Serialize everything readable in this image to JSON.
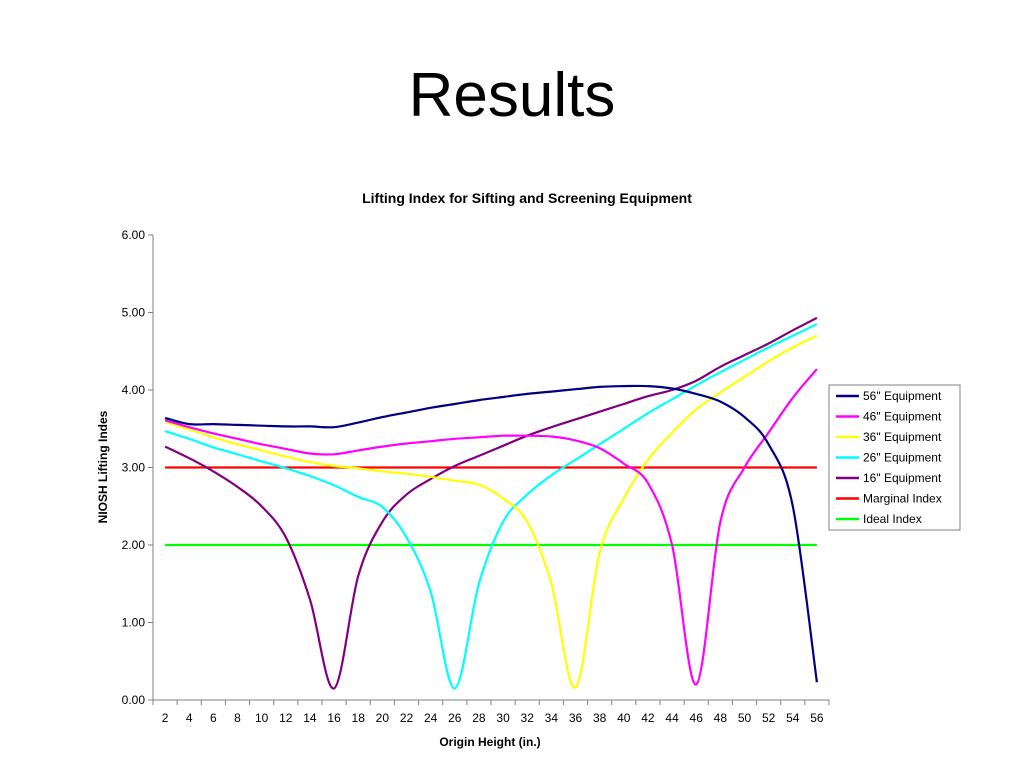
{
  "slide": {
    "title": "Results"
  },
  "chart_data": {
    "type": "line",
    "title": "Lifting Index for Sifting and Screening Equipment",
    "xlabel": "Origin Height (in.)",
    "ylabel": "NIOSH Lifting Indes",
    "ylim": [
      0,
      6
    ],
    "yticks": [
      "0.00",
      "1.00",
      "2.00",
      "3.00",
      "4.00",
      "5.00",
      "6.00"
    ],
    "x": [
      2,
      4,
      6,
      8,
      10,
      12,
      14,
      16,
      18,
      20,
      22,
      24,
      26,
      28,
      30,
      32,
      34,
      36,
      38,
      40,
      42,
      44,
      46,
      48,
      50,
      52,
      54,
      56
    ],
    "legend_position": "right",
    "series": [
      {
        "name": "56\" Equipment",
        "color": "#000080",
        "values": [
          3.64,
          3.56,
          3.56,
          3.55,
          3.54,
          3.53,
          3.53,
          3.52,
          3.58,
          3.65,
          3.71,
          3.77,
          3.82,
          3.87,
          3.91,
          3.95,
          3.98,
          4.01,
          4.04,
          4.05,
          4.05,
          4.02,
          3.95,
          3.85,
          3.65,
          3.3,
          2.5,
          0.23
        ]
      },
      {
        "name": "46\" Equipment",
        "color": "#FF00FF",
        "values": [
          3.61,
          3.52,
          3.44,
          3.37,
          3.3,
          3.24,
          3.18,
          3.17,
          3.22,
          3.27,
          3.31,
          3.34,
          3.37,
          3.39,
          3.41,
          3.41,
          3.4,
          3.35,
          3.25,
          3.05,
          2.8,
          2.0,
          0.2,
          2.3,
          3.0,
          3.45,
          3.9,
          4.27
        ]
      },
      {
        "name": "36\" Equipment",
        "color": "#FFFF00",
        "values": [
          3.59,
          3.49,
          3.39,
          3.3,
          3.22,
          3.14,
          3.07,
          3.02,
          2.99,
          2.95,
          2.92,
          2.88,
          2.83,
          2.78,
          2.6,
          2.3,
          1.5,
          0.16,
          1.9,
          2.6,
          3.1,
          3.45,
          3.75,
          3.97,
          4.17,
          4.37,
          4.55,
          4.7
        ]
      },
      {
        "name": "26\" Equipment",
        "color": "#00FFFF",
        "values": [
          3.47,
          3.37,
          3.26,
          3.17,
          3.08,
          2.99,
          2.89,
          2.77,
          2.62,
          2.49,
          2.1,
          1.4,
          0.15,
          1.5,
          2.3,
          2.65,
          2.9,
          3.1,
          3.3,
          3.5,
          3.7,
          3.88,
          4.06,
          4.23,
          4.39,
          4.55,
          4.7,
          4.85
        ]
      },
      {
        "name": "16\" Equipment",
        "color": "#800080",
        "values": [
          3.27,
          3.12,
          2.95,
          2.75,
          2.5,
          2.1,
          1.3,
          0.15,
          1.6,
          2.3,
          2.65,
          2.85,
          3.02,
          3.15,
          3.28,
          3.41,
          3.52,
          3.62,
          3.72,
          3.82,
          3.92,
          4.0,
          4.12,
          4.3,
          4.45,
          4.6,
          4.77,
          4.93
        ]
      },
      {
        "name": "Marginal Index",
        "color": "#FF0000",
        "values": [
          3,
          3,
          3,
          3,
          3,
          3,
          3,
          3,
          3,
          3,
          3,
          3,
          3,
          3,
          3,
          3,
          3,
          3,
          3,
          3,
          3,
          3,
          3,
          3,
          3,
          3,
          3,
          3
        ]
      },
      {
        "name": "Ideal Index",
        "color": "#00FF00",
        "values": [
          2,
          2,
          2,
          2,
          2,
          2,
          2,
          2,
          2,
          2,
          2,
          2,
          2,
          2,
          2,
          2,
          2,
          2,
          2,
          2,
          2,
          2,
          2,
          2,
          2,
          2,
          2,
          2
        ]
      }
    ]
  }
}
